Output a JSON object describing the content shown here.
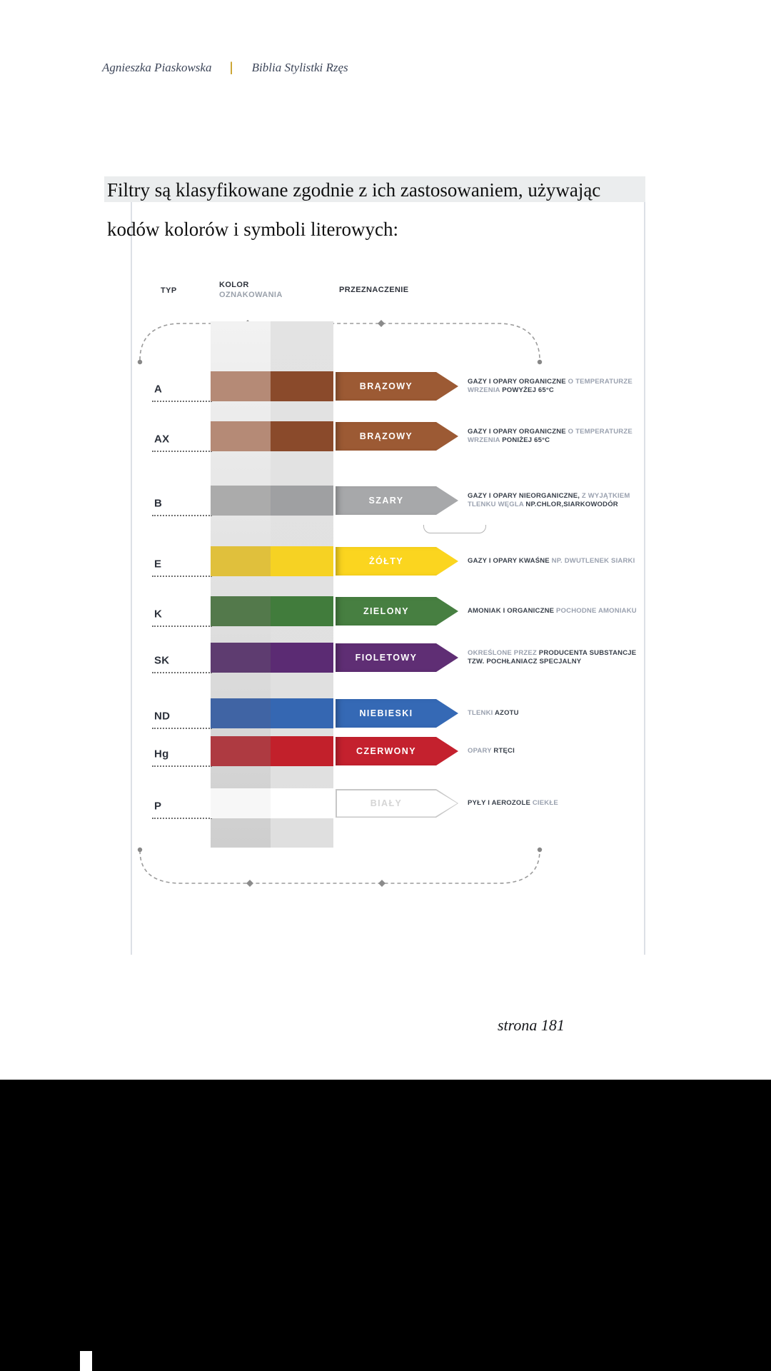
{
  "page": {
    "header": {
      "author": "Agnieszka Piaskowska",
      "divider": "|",
      "book": "Biblia Stylistki Rzęs"
    },
    "title": {
      "line1": "Filtry są klasyfikowane zgodnie z ich zastosowaniem, używając",
      "line2": "kodów kolorów i symboli literowych:"
    },
    "footer": {
      "page_label": "strona 181"
    }
  },
  "table": {
    "headers": {
      "typ": "TYP",
      "kolor_line1": "KOLOR",
      "kolor_line2": "OZNAKOWANIA",
      "przeznaczenie": "PRZEZNACZENIE"
    },
    "rows": [
      {
        "typ": "A",
        "color_label": "BRĄZOWY",
        "arrow_color": "#9C5A34",
        "band_left": "#B58A76",
        "band_right": "#8A4A2B",
        "outline": false,
        "desc": [
          {
            "b": 1,
            "t": "GAZY I OPARY ORGANICZNE"
          },
          {
            "b": 0,
            "t": " O TEMPERATURZE"
          },
          {
            "br": 1
          },
          {
            "b": 0,
            "t": "WRZENIA "
          },
          {
            "b": 1,
            "t": "POWYŻEJ 65°C"
          }
        ]
      },
      {
        "typ": "AX",
        "color_label": "BRĄZOWY",
        "arrow_color": "#9C5A34",
        "band_left": "#B58A76",
        "band_right": "#8A4A2B",
        "outline": false,
        "desc": [
          {
            "b": 1,
            "t": "GAZY I OPARY ORGANICZNE"
          },
          {
            "b": 0,
            "t": " O TEMPERATURZE"
          },
          {
            "br": 1
          },
          {
            "b": 0,
            "t": "WRZENIA "
          },
          {
            "b": 1,
            "t": "PONIŻEJ 65°C"
          }
        ]
      },
      {
        "typ": "B",
        "color_label": "SZARY",
        "arrow_color": "#A7A8AA",
        "band_left": "#ABABAB",
        "band_right": "#9FA0A2",
        "outline": false,
        "desc": [
          {
            "b": 1,
            "t": "GAZY I OPARY NIEORGANICZNE, "
          },
          {
            "b": 0,
            "t": "Z WYJĄTKIEM"
          },
          {
            "br": 1
          },
          {
            "b": 0,
            "t": "TLENKU WĘGLA "
          },
          {
            "b": 1,
            "t": "NP.CHLOR,SIARKOWODÓR"
          }
        ]
      },
      {
        "typ": "E",
        "color_label": "ŻÓŁTY",
        "arrow_color": "#FBD51F",
        "band_left": "#E0C03C",
        "band_right": "#F6D223",
        "outline": false,
        "desc": [
          {
            "b": 1,
            "t": "GAZY I OPARY KWAŚNE "
          },
          {
            "b": 0,
            "t": "NP. DWUTLENEK SIARKI"
          }
        ]
      },
      {
        "typ": "K",
        "color_label": "ZIELONY",
        "arrow_color": "#477F41",
        "band_left": "#53794B",
        "band_right": "#417C3C",
        "outline": false,
        "desc": [
          {
            "b": 1,
            "t": "AMONIAK I ORGANICZNE "
          },
          {
            "b": 0,
            "t": "POCHODNE AMONIAKU"
          }
        ]
      },
      {
        "typ": "SK",
        "color_label": "FIOLETOWY",
        "arrow_color": "#5F2E74",
        "band_left": "#5E3C70",
        "band_right": "#5B2B73",
        "outline": false,
        "desc": [
          {
            "b": 0,
            "t": "OKREŚLONE PRZEZ "
          },
          {
            "b": 1,
            "t": "PRODUCENTA SUBSTANCJE"
          },
          {
            "br": 1
          },
          {
            "b": 1,
            "t": "TZW. POCHŁANIACZ SPECJALNY"
          }
        ]
      },
      {
        "typ": "ND",
        "color_label": "NIEBIESKI",
        "arrow_color": "#3569B5",
        "band_left": "#4064A4",
        "band_right": "#3567B2",
        "outline": false,
        "desc": [
          {
            "b": 0,
            "t": "TLENKI "
          },
          {
            "b": 1,
            "t": "AZOTU"
          }
        ]
      },
      {
        "typ": "Hg",
        "color_label": "CZERWONY",
        "arrow_color": "#C4212E",
        "band_left": "#AE3A41",
        "band_right": "#C2202B",
        "outline": false,
        "desc": [
          {
            "b": 0,
            "t": "OPARY "
          },
          {
            "b": 1,
            "t": "RTĘCI"
          }
        ]
      },
      {
        "typ": "P",
        "color_label": "BIAŁY",
        "arrow_color": "#FFFFFF",
        "band_left": "#F7F7F7",
        "band_right": "#FFFFFF",
        "outline": true,
        "desc": [
          {
            "b": 1,
            "t": "PYŁY I AEROZOLE "
          },
          {
            "b": 0,
            "t": "CIEKŁE"
          }
        ]
      }
    ]
  },
  "colors": {
    "header_divider_gold": "#C9A22B",
    "title_highlight": "#EBEDEE",
    "desc_bold_text": "#39404B",
    "desc_light_text": "#9AA1AF",
    "bracket_gray": "#9B9B9B",
    "bottom_band": "#000000"
  }
}
